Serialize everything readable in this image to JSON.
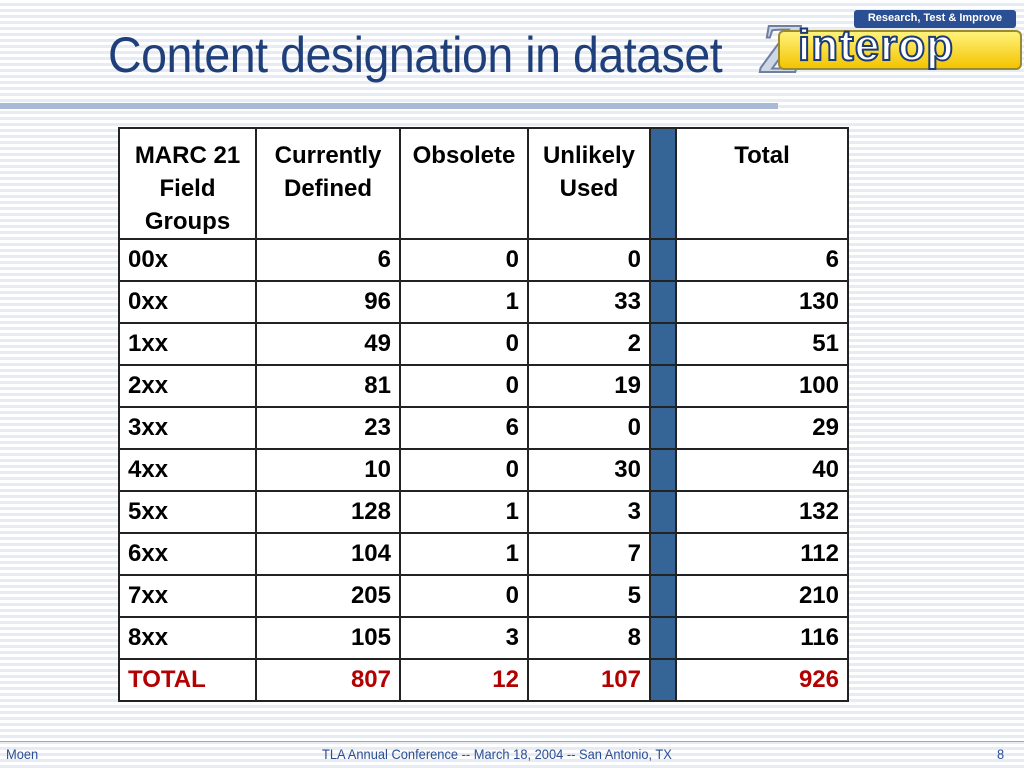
{
  "slide": {
    "title": "Content designation in dataset",
    "logo": {
      "tagline": "Research, Test & Improve",
      "wordmark": "interop",
      "mark": "Z"
    }
  },
  "table": {
    "headers": {
      "group": "MARC 21 Field Groups",
      "defined": "Currently Defined",
      "obsolete": "Obsolete",
      "unlikely": "Unlikely Used",
      "total": "Total"
    },
    "rows": [
      {
        "group": "00x",
        "defined": "6",
        "obsolete": "0",
        "unlikely": "0",
        "total": "6"
      },
      {
        "group": "0xx",
        "defined": "96",
        "obsolete": "1",
        "unlikely": "33",
        "total": "130"
      },
      {
        "group": "1xx",
        "defined": "49",
        "obsolete": "0",
        "unlikely": "2",
        "total": "51"
      },
      {
        "group": "2xx",
        "defined": "81",
        "obsolete": "0",
        "unlikely": "19",
        "total": "100"
      },
      {
        "group": "3xx",
        "defined": "23",
        "obsolete": "6",
        "unlikely": "0",
        "total": "29"
      },
      {
        "group": "4xx",
        "defined": "10",
        "obsolete": "0",
        "unlikely": "30",
        "total": "40"
      },
      {
        "group": "5xx",
        "defined": "128",
        "obsolete": "1",
        "unlikely": "3",
        "total": "132"
      },
      {
        "group": "6xx",
        "defined": "104",
        "obsolete": "1",
        "unlikely": "7",
        "total": "112"
      },
      {
        "group": "7xx",
        "defined": "205",
        "obsolete": "0",
        "unlikely": "5",
        "total": "210"
      },
      {
        "group": "8xx",
        "defined": "105",
        "obsolete": "3",
        "unlikely": "8",
        "total": "116"
      }
    ],
    "totals": {
      "group": "TOTAL",
      "defined": "807",
      "obsolete": "12",
      "unlikely": "107",
      "total": "926"
    },
    "colors": {
      "spacer": "#356497",
      "total_text": "#b30000",
      "title": "#1f3f7a"
    }
  },
  "footer": {
    "author": "Moen",
    "event": "TLA Annual Conference -- March 18, 2004 -- San Antonio, TX",
    "page": "8"
  }
}
